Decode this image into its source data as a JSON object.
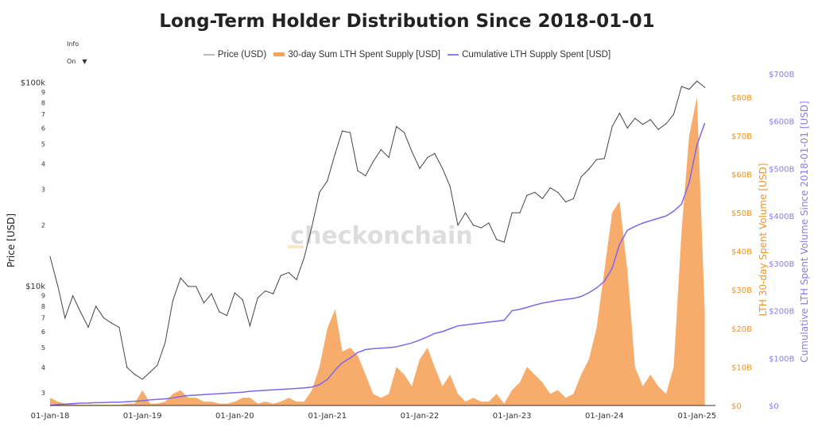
{
  "title": "Long-Term Holder Distribution Since 2018-01-01",
  "info_toggle": {
    "label": "Info On",
    "arrow": "▼"
  },
  "watermark": "checkonchain",
  "colors": {
    "price": "#444444",
    "lth_30d": "#f7a35c",
    "cumulative": "#7b68ee",
    "orange_axis": "#f7931a",
    "purple_axis": "#8a7cf0"
  },
  "chart_data": {
    "type": "line",
    "title": "Long-Term Holder Distribution Since 2018-01-01",
    "legend": {
      "placement": "top",
      "entries": [
        "Price (USD)",
        "30-day Sum LTH Spent Supply [USD]",
        "Cumulative LTH Supply Spent [USD]"
      ]
    },
    "xaxis": {
      "ticks": [
        "01-Jan-18",
        "01-Jan-19",
        "01-Jan-20",
        "01-Jan-21",
        "01-Jan-22",
        "01-Jan-23",
        "01-Jan-24",
        "01-Jan-25"
      ],
      "tick_dates": [
        "2018-01-01",
        "2019-01-01",
        "2020-01-01",
        "2021-01-01",
        "2022-01-01",
        "2023-01-01",
        "2024-01-01",
        "2025-01-01"
      ],
      "range": [
        "2018-01-01",
        "2025-03-15"
      ]
    },
    "yaxis_left": {
      "label": "Price [USD]",
      "scale": "log",
      "range": [
        2600,
        105000
      ],
      "ticks": [
        {
          "v": 100000,
          "t": "$100k"
        },
        {
          "v": 90000,
          "t": "9"
        },
        {
          "v": 80000,
          "t": "8"
        },
        {
          "v": 70000,
          "t": "7"
        },
        {
          "v": 60000,
          "t": "6"
        },
        {
          "v": 50000,
          "t": "5"
        },
        {
          "v": 40000,
          "t": "4"
        },
        {
          "v": 30000,
          "t": "3"
        },
        {
          "v": 20000,
          "t": "2"
        },
        {
          "v": 10000,
          "t": "$10k"
        },
        {
          "v": 9000,
          "t": "9"
        },
        {
          "v": 8000,
          "t": "8"
        },
        {
          "v": 7000,
          "t": "7"
        },
        {
          "v": 6000,
          "t": "6"
        },
        {
          "v": 5000,
          "t": "5"
        },
        {
          "v": 4000,
          "t": "4"
        },
        {
          "v": 3000,
          "t": "3"
        }
      ]
    },
    "yaxis_right1": {
      "label": "LTH 30-day Spent Volume [USD]",
      "range": [
        0,
        85
      ],
      "unit": "B USD",
      "ticks": [
        "$0",
        "$10B",
        "$20B",
        "$30B",
        "$40B",
        "$50B",
        "$60B",
        "$70B",
        "$80B"
      ],
      "tick_values": [
        0,
        10,
        20,
        30,
        40,
        50,
        60,
        70,
        80
      ]
    },
    "yaxis_right2": {
      "label": "Cumulative LTH Spent Volume Since 2018-01-01 [USD]",
      "range": [
        0,
        700
      ],
      "unit": "B USD",
      "ticks": [
        "$0",
        "$100B",
        "$200B",
        "$300B",
        "$400B",
        "$500B",
        "$600B",
        "$700B"
      ],
      "tick_values": [
        0,
        100,
        200,
        300,
        400,
        500,
        600,
        700
      ]
    },
    "grid": false,
    "x": [
      "2018-01",
      "2018-02",
      "2018-03",
      "2018-04",
      "2018-05",
      "2018-06",
      "2018-07",
      "2018-08",
      "2018-09",
      "2018-10",
      "2018-11",
      "2018-12",
      "2019-01",
      "2019-02",
      "2019-03",
      "2019-04",
      "2019-05",
      "2019-06",
      "2019-07",
      "2019-08",
      "2019-09",
      "2019-10",
      "2019-11",
      "2019-12",
      "2020-01",
      "2020-02",
      "2020-03",
      "2020-04",
      "2020-05",
      "2020-06",
      "2020-07",
      "2020-08",
      "2020-09",
      "2020-10",
      "2020-11",
      "2020-12",
      "2021-01",
      "2021-02",
      "2021-03",
      "2021-04",
      "2021-05",
      "2021-06",
      "2021-07",
      "2021-08",
      "2021-09",
      "2021-10",
      "2021-11",
      "2021-12",
      "2022-01",
      "2022-02",
      "2022-03",
      "2022-04",
      "2022-05",
      "2022-06",
      "2022-07",
      "2022-08",
      "2022-09",
      "2022-10",
      "2022-11",
      "2022-12",
      "2023-01",
      "2023-02",
      "2023-03",
      "2023-04",
      "2023-05",
      "2023-06",
      "2023-07",
      "2023-08",
      "2023-09",
      "2023-10",
      "2023-11",
      "2023-12",
      "2024-01",
      "2024-02",
      "2024-03",
      "2024-04",
      "2024-05",
      "2024-06",
      "2024-07",
      "2024-08",
      "2024-09",
      "2024-10",
      "2024-11",
      "2024-12",
      "2025-01",
      "2025-02"
    ],
    "series": [
      {
        "name": "Price (USD)",
        "axis": "left",
        "values": [
          14000,
          10000,
          7000,
          9000,
          7500,
          6300,
          8000,
          7000,
          6600,
          6300,
          4000,
          3700,
          3500,
          3800,
          4100,
          5300,
          8500,
          11000,
          10000,
          10000,
          8300,
          9200,
          7500,
          7200,
          9300,
          8600,
          6400,
          8800,
          9500,
          9200,
          11300,
          11700,
          10800,
          13800,
          19700,
          29000,
          33000,
          45000,
          58000,
          57000,
          37000,
          35000,
          41000,
          47000,
          43000,
          61000,
          57000,
          46000,
          38000,
          43000,
          45000,
          38000,
          31000,
          20000,
          23000,
          20000,
          19400,
          20500,
          17000,
          16500,
          23000,
          23000,
          28000,
          29000,
          27000,
          30500,
          29000,
          26000,
          27000,
          34500,
          37700,
          42000,
          42500,
          61000,
          71000,
          60000,
          67000,
          62500,
          66000,
          59000,
          63000,
          70000,
          96000,
          93000,
          102000,
          95000
        ]
      },
      {
        "name": "30-day Sum LTH Spent Supply [USD]",
        "axis": "right1",
        "values": [
          2,
          1,
          0.5,
          0.3,
          0.2,
          0.2,
          0.2,
          0.2,
          0.2,
          0.2,
          0.5,
          0.5,
          4,
          0.5,
          0.5,
          1,
          3,
          4,
          2,
          2,
          1,
          1,
          0.5,
          0.5,
          1,
          2,
          2,
          0.5,
          1,
          0.5,
          1,
          2,
          1,
          1,
          4,
          10,
          20,
          25,
          14,
          15,
          13,
          8,
          3,
          2,
          3,
          10,
          8,
          5,
          12,
          15,
          10,
          5,
          8,
          3,
          1,
          2,
          1,
          1,
          3,
          0.5,
          4,
          6,
          10,
          8,
          6,
          3,
          4,
          2,
          3,
          8,
          12,
          20,
          35,
          50,
          53,
          35,
          10,
          5,
          8,
          5,
          3,
          10,
          45,
          70,
          80,
          24
        ]
      },
      {
        "name": "Cumulative LTH Supply Spent [USD]",
        "axis": "right2",
        "values": [
          0,
          2,
          3,
          4,
          5,
          5,
          6,
          6,
          7,
          7,
          8,
          9,
          10,
          12,
          13,
          14,
          16,
          19,
          21,
          22,
          23,
          24,
          25,
          26,
          27,
          28,
          30,
          31,
          32,
          33,
          34,
          35,
          36,
          37,
          39,
          44,
          55,
          75,
          90,
          100,
          112,
          118,
          120,
          121,
          122,
          124,
          128,
          132,
          138,
          145,
          152,
          156,
          162,
          168,
          170,
          172,
          174,
          176,
          178,
          180,
          200,
          203,
          207,
          212,
          216,
          219,
          222,
          224,
          226,
          230,
          238,
          248,
          262,
          290,
          340,
          370,
          378,
          385,
          390,
          395,
          400,
          410,
          425,
          470,
          550,
          596
        ]
      }
    ]
  }
}
